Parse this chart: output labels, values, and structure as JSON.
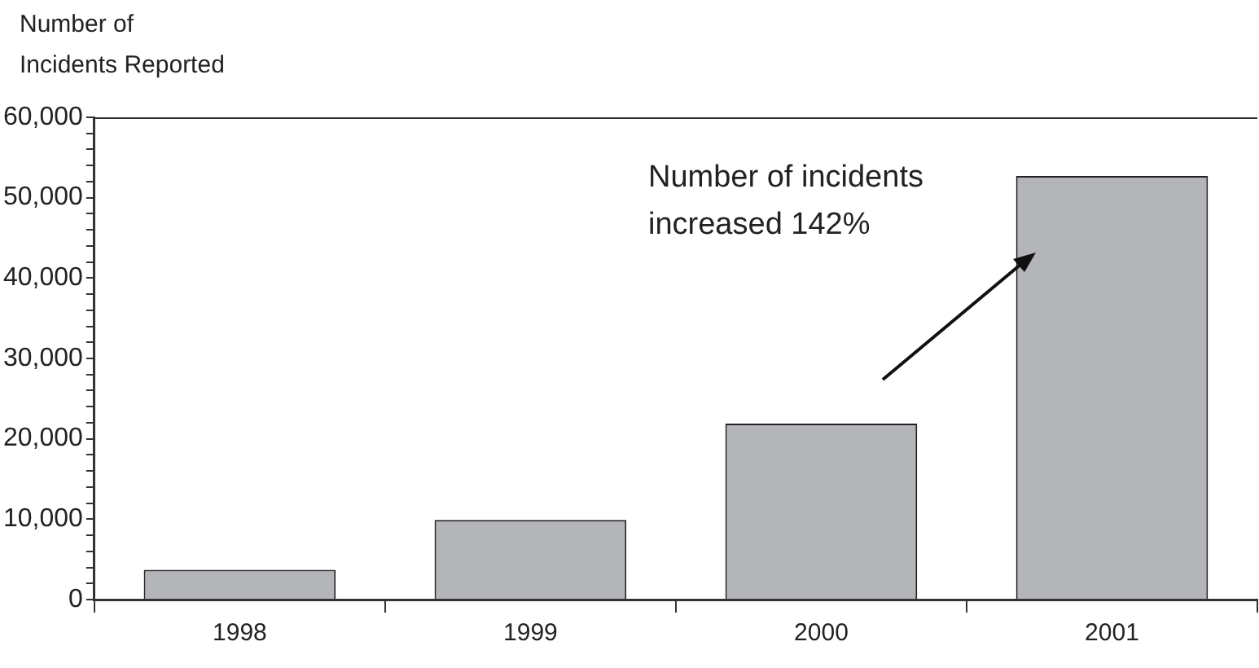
{
  "chart_data": {
    "type": "bar",
    "ylabel": "Number of Incidents Reported",
    "categories": [
      "1998",
      "1999",
      "2000",
      "2001"
    ],
    "values": [
      3700,
      9900,
      21900,
      52700
    ],
    "color": "#b4b5b9",
    "ylim": [
      0,
      60000
    ],
    "yticks": [
      0,
      {
        "value": 2000,
        "label": null
      },
      {
        "value": 4000,
        "label": null
      },
      {
        "value": 6000,
        "label": null
      },
      {
        "value": 8000,
        "label": null
      },
      {
        "value": 10000,
        "label": "10,000"
      },
      {
        "value": 12000,
        "label": null
      },
      {
        "value": 14000,
        "label": null
      },
      {
        "value": 16000,
        "label": null
      },
      {
        "value": 18000,
        "label": null
      },
      {
        "value": 20000,
        "label": "20,000"
      },
      {
        "value": 22000,
        "label": null
      },
      {
        "value": 24000,
        "label": null
      },
      {
        "value": 26000,
        "label": null
      },
      {
        "value": 28000,
        "label": null
      },
      {
        "value": 30000,
        "label": "30,000"
      },
      {
        "value": 32000,
        "label": null
      },
      {
        "value": 34000,
        "label": null
      },
      {
        "value": 36000,
        "label": null
      },
      {
        "value": 38000,
        "label": null
      },
      {
        "value": 40000,
        "label": "40,000"
      },
      {
        "value": 42000,
        "label": null
      },
      {
        "value": 44000,
        "label": null
      },
      {
        "value": 46000,
        "label": null
      },
      {
        "value": 48000,
        "label": null
      },
      {
        "value": 50000,
        "label": "50,000"
      },
      {
        "value": 52000,
        "label": null
      },
      {
        "value": 54000,
        "label": null
      },
      {
        "value": 56000,
        "label": null
      },
      {
        "value": 58000,
        "label": null
      },
      {
        "value": 60000,
        "label": "60,000"
      }
    ],
    "annotations": [
      "Number of incidents increased 142%"
    ],
    "grid": false,
    "legend": false
  }
}
